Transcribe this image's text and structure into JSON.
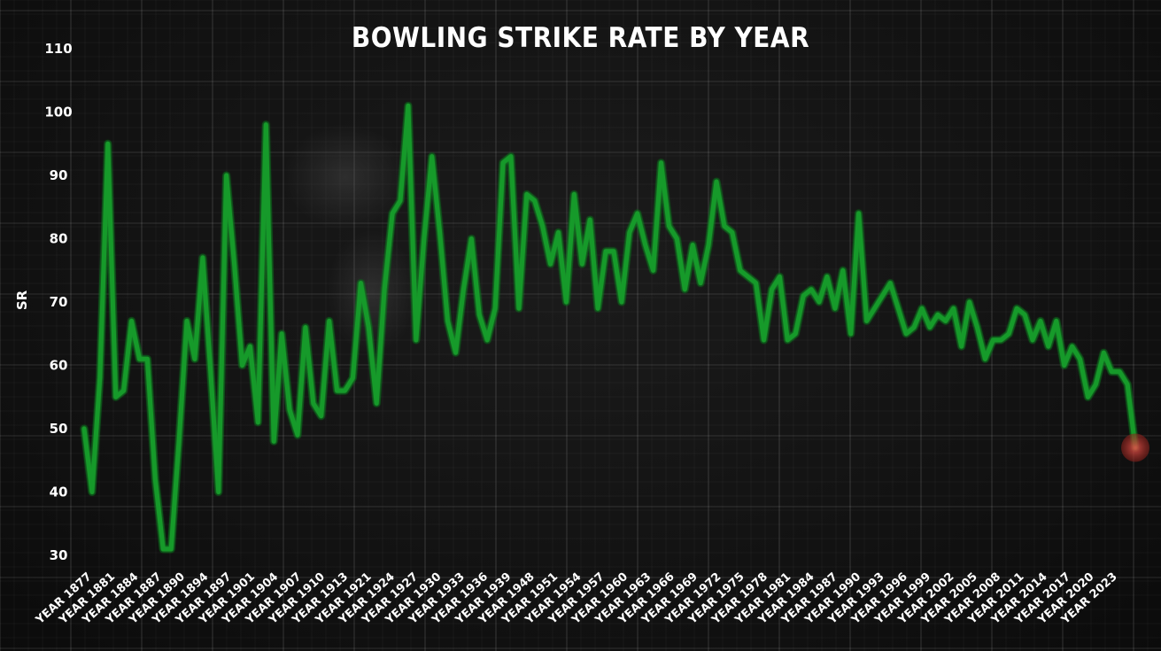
{
  "chart_data": {
    "type": "line",
    "title": "BOWLING STRIKE RATE BY YEAR",
    "xlabel": "",
    "ylabel": "SR",
    "ylim": [
      30,
      110
    ],
    "yticks": [
      30,
      40,
      50,
      60,
      70,
      80,
      90,
      100,
      110
    ],
    "grid": true,
    "xtick_labels": [
      "YEAR 1877",
      "YEAR 1881",
      "YEAR 1884",
      "YEAR 1887",
      "YEAR 1890",
      "YEAR 1894",
      "YEAR 1897",
      "YEAR 1901",
      "YEAR 1904",
      "YEAR 1907",
      "YEAR 1910",
      "YEAR 1913",
      "YEAR 1921",
      "YEAR 1924",
      "YEAR 1927",
      "YEAR 1930",
      "YEAR 1933",
      "YEAR 1936",
      "YEAR 1939",
      "YEAR 1948",
      "YEAR 1951",
      "YEAR 1954",
      "YEAR 1957",
      "YEAR 1960",
      "YEAR 1963",
      "YEAR 1966",
      "YEAR 1969",
      "YEAR 1972",
      "YEAR 1975",
      "YEAR 1978",
      "YEAR 1981",
      "YEAR 1984",
      "YEAR 1987",
      "YEAR 1990",
      "YEAR 1993",
      "YEAR 1996",
      "YEAR 1999",
      "YEAR 2002",
      "YEAR 2005",
      "YEAR 2008",
      "YEAR 2011",
      "YEAR 2014",
      "YEAR 2017",
      "YEAR 2020",
      "YEAR 2023"
    ],
    "values": [
      50,
      40,
      58,
      95,
      55,
      56,
      67,
      61,
      61,
      42,
      31,
      31,
      48,
      67,
      61,
      77,
      59,
      40,
      90,
      76,
      60,
      63,
      51,
      98,
      48,
      65,
      53,
      49,
      66,
      54,
      52,
      67,
      56,
      56,
      58,
      73,
      66,
      54,
      72,
      84,
      86,
      101,
      64,
      80,
      93,
      81,
      67,
      62,
      72,
      80,
      68,
      64,
      69,
      92,
      93,
      69,
      87,
      86,
      82,
      76,
      81,
      70,
      87,
      76,
      83,
      69,
      78,
      78,
      70,
      81,
      84,
      79,
      75,
      92,
      82,
      80,
      72,
      79,
      73,
      79,
      89,
      82,
      81,
      75,
      74,
      73,
      64,
      72,
      74,
      64,
      65,
      71,
      72,
      70,
      74,
      69,
      75,
      65,
      84,
      67,
      69,
      71,
      73,
      69,
      65,
      66,
      69,
      66,
      68,
      67,
      69,
      63,
      70,
      66,
      61,
      64,
      64,
      65,
      69,
      68,
      64,
      67,
      63,
      67,
      60,
      63,
      61,
      55,
      57,
      62,
      59,
      59,
      57,
      47
    ],
    "series_color": "#169a2a",
    "highlight_color": "#c0392b"
  }
}
